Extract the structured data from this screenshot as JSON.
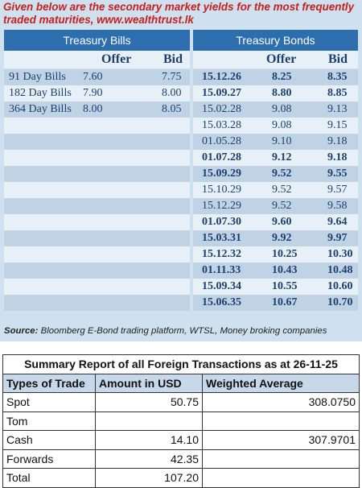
{
  "intro": "Given below are the secondary market yields for the most frequently traded maturities, www.wealthtrust.lk",
  "bills": {
    "header": "Treasury Bills",
    "col_offer": "Offer",
    "col_bid": "Bid",
    "rows": [
      {
        "name": "91 Day Bills",
        "offer": "7.60",
        "bid": "7.75"
      },
      {
        "name": "182 Day Bills",
        "offer": "7.90",
        "bid": "8.00"
      },
      {
        "name": "364 Day Bills",
        "offer": "8.00",
        "bid": "8.05"
      }
    ]
  },
  "bonds": {
    "header": "Treasury Bonds",
    "col_offer": "Offer",
    "col_bid": "Bid",
    "rows": [
      {
        "maturity": "15.12.26",
        "offer": "8.25",
        "bid": "8.35"
      },
      {
        "maturity": "15.09.27",
        "offer": "8.80",
        "bid": "8.85"
      },
      {
        "maturity": "15.02.28",
        "offer": "9.08",
        "bid": "9.13"
      },
      {
        "maturity": "15.03.28",
        "offer": "9.08",
        "bid": "9.15"
      },
      {
        "maturity": "01.05.28",
        "offer": "9.10",
        "bid": "9.18"
      },
      {
        "maturity": "01.07.28",
        "offer": "9.12",
        "bid": "9.18"
      },
      {
        "maturity": "15.09.29",
        "offer": "9.52",
        "bid": "9.55"
      },
      {
        "maturity": "15.10.29",
        "offer": "9.52",
        "bid": "9.57"
      },
      {
        "maturity": "15.12.29",
        "offer": "9.52",
        "bid": "9.58"
      },
      {
        "maturity": "01.07.30",
        "offer": "9.60",
        "bid": "9.64"
      },
      {
        "maturity": "15.03.31",
        "offer": "9.92",
        "bid": "9.97"
      },
      {
        "maturity": "15.12.32",
        "offer": "10.25",
        "bid": "10.30"
      },
      {
        "maturity": "01.11.33",
        "offer": "10.43",
        "bid": "10.48"
      },
      {
        "maturity": "15.09.34",
        "offer": "10.55",
        "bid": "10.60"
      },
      {
        "maturity": "15.06.35",
        "offer": "10.67",
        "bid": "10.70"
      }
    ]
  },
  "source": {
    "label": "Source:",
    "text": "Bloomberg E-Bond trading platform, WTSL, Money broking companies"
  },
  "summary": {
    "title": "Summary Report of all Foreign Transactions as at 26-11-25",
    "headers": [
      "Types of Trade",
      "Amount in USD",
      "Weighted Average"
    ],
    "rows": [
      {
        "type": "Spot",
        "amount": "50.75",
        "wavg": "308.0750"
      },
      {
        "type": "Tom",
        "amount": "",
        "wavg": ""
      },
      {
        "type": "Cash",
        "amount": "14.10",
        "wavg": "307.9701"
      },
      {
        "type": "Forwards",
        "amount": "42.35",
        "wavg": ""
      },
      {
        "type": "Total",
        "amount": "107.20",
        "wavg": ""
      }
    ]
  }
}
